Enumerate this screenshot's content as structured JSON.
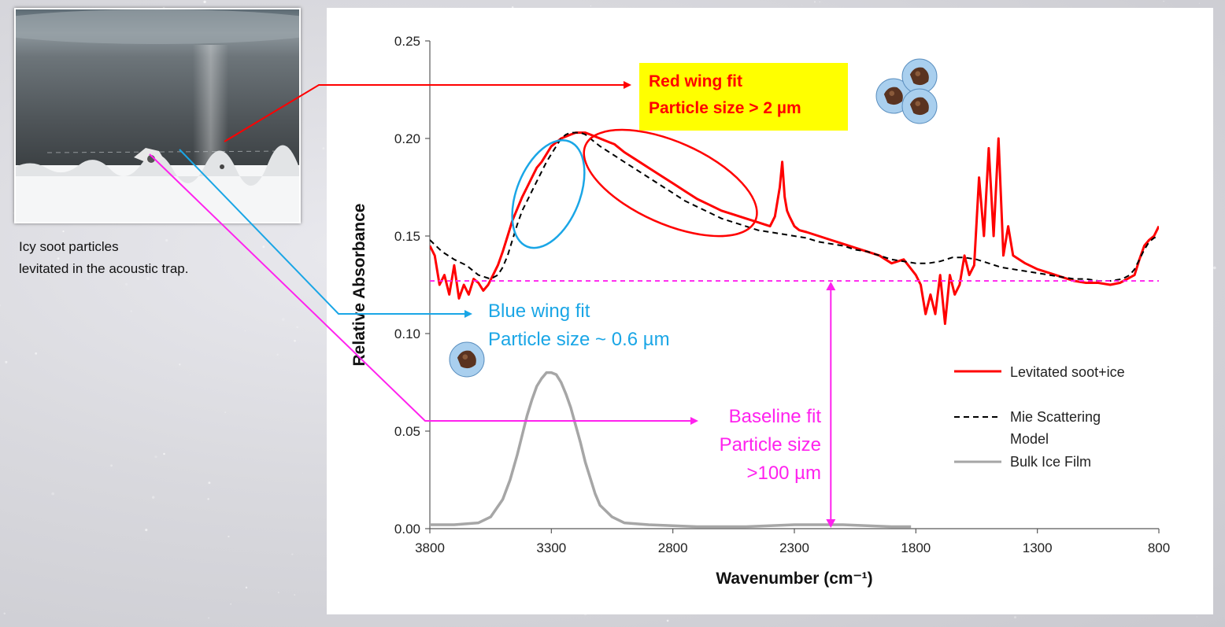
{
  "photo": {
    "caption_line1": "Icy soot particles",
    "caption_line2": "levitated in the acoustic trap."
  },
  "annotations": {
    "red_line1": "Red wing fit",
    "red_line2": "Particle size > 2 µm",
    "blue_line1": "Blue wing fit",
    "blue_line2": "Particle size ~ 0.6 µm",
    "magenta_line1": "Baseline fit",
    "magenta_line2": "Particle size",
    "magenta_line3": ">100 µm"
  },
  "colors": {
    "measured": "#ff0000",
    "model": "#000000",
    "ice": "#a6a6a6",
    "blue_annotation": "#1aa6e6",
    "baseline_annotation": "#ff22ee"
  },
  "chart_data": {
    "type": "line",
    "title": "",
    "xlabel": "Wavenumber (cm⁻¹)",
    "ylabel": "Relative Absorbance",
    "xlim": [
      3800,
      800
    ],
    "ylim": [
      0,
      0.25
    ],
    "x_reversed": true,
    "xticks": [
      3800,
      3300,
      2800,
      2300,
      1800,
      1300,
      800
    ],
    "xtick_labels": [
      "3800",
      "3300",
      "2800",
      "2300",
      "1800",
      "1300",
      "800"
    ],
    "yticks": [
      0,
      0.05,
      0.1,
      0.15,
      0.2,
      0.25
    ],
    "ytick_labels": [
      "0.00",
      "0.05",
      "0.10",
      "0.15",
      "0.20",
      "0.25"
    ],
    "legend_position": "right",
    "baseline_level": 0.127,
    "series": [
      {
        "name": "Levitated soot+ice",
        "style": "solid",
        "x": [
          3800,
          3780,
          3760,
          3740,
          3720,
          3700,
          3680,
          3660,
          3640,
          3620,
          3600,
          3580,
          3560,
          3540,
          3520,
          3500,
          3480,
          3460,
          3440,
          3420,
          3400,
          3380,
          3360,
          3340,
          3320,
          3300,
          3280,
          3260,
          3240,
          3220,
          3200,
          3180,
          3160,
          3140,
          3120,
          3100,
          3080,
          3060,
          3040,
          3020,
          3000,
          2950,
          2900,
          2850,
          2800,
          2750,
          2700,
          2650,
          2600,
          2550,
          2500,
          2450,
          2400,
          2380,
          2360,
          2350,
          2340,
          2330,
          2320,
          2300,
          2280,
          2250,
          2200,
          2150,
          2100,
          2050,
          2000,
          1950,
          1900,
          1850,
          1800,
          1780,
          1760,
          1740,
          1720,
          1700,
          1680,
          1660,
          1640,
          1620,
          1600,
          1580,
          1560,
          1540,
          1520,
          1500,
          1480,
          1460,
          1440,
          1420,
          1400,
          1350,
          1300,
          1250,
          1200,
          1150,
          1100,
          1050,
          1000,
          960,
          930,
          900,
          880,
          860,
          840,
          820,
          800
        ],
        "y": [
          0.145,
          0.14,
          0.125,
          0.13,
          0.12,
          0.135,
          0.118,
          0.125,
          0.12,
          0.128,
          0.126,
          0.122,
          0.125,
          0.13,
          0.135,
          0.142,
          0.15,
          0.158,
          0.164,
          0.17,
          0.175,
          0.18,
          0.185,
          0.188,
          0.192,
          0.196,
          0.198,
          0.2,
          0.201,
          0.202,
          0.203,
          0.203,
          0.203,
          0.202,
          0.201,
          0.2,
          0.199,
          0.198,
          0.197,
          0.195,
          0.193,
          0.189,
          0.185,
          0.181,
          0.177,
          0.173,
          0.169,
          0.166,
          0.163,
          0.161,
          0.159,
          0.157,
          0.155,
          0.16,
          0.175,
          0.188,
          0.17,
          0.163,
          0.16,
          0.155,
          0.153,
          0.152,
          0.15,
          0.148,
          0.146,
          0.144,
          0.142,
          0.14,
          0.136,
          0.138,
          0.13,
          0.125,
          0.11,
          0.12,
          0.11,
          0.13,
          0.105,
          0.13,
          0.12,
          0.125,
          0.14,
          0.13,
          0.135,
          0.18,
          0.15,
          0.195,
          0.15,
          0.2,
          0.14,
          0.155,
          0.14,
          0.136,
          0.133,
          0.131,
          0.129,
          0.127,
          0.126,
          0.126,
          0.125,
          0.126,
          0.128,
          0.13,
          0.138,
          0.145,
          0.148,
          0.15,
          0.155
        ]
      },
      {
        "name": "Mie Scattering Model",
        "style": "dashed",
        "x": [
          3800,
          3750,
          3700,
          3650,
          3600,
          3550,
          3520,
          3500,
          3480,
          3460,
          3440,
          3420,
          3400,
          3380,
          3360,
          3340,
          3320,
          3300,
          3280,
          3260,
          3240,
          3220,
          3200,
          3180,
          3160,
          3140,
          3120,
          3100,
          3050,
          3000,
          2950,
          2900,
          2850,
          2800,
          2750,
          2700,
          2650,
          2600,
          2550,
          2500,
          2450,
          2400,
          2350,
          2300,
          2250,
          2200,
          2150,
          2100,
          2050,
          2000,
          1950,
          1900,
          1850,
          1800,
          1750,
          1700,
          1650,
          1600,
          1550,
          1500,
          1450,
          1400,
          1350,
          1300,
          1250,
          1200,
          1150,
          1100,
          1050,
          1000,
          950,
          920,
          900,
          880,
          860,
          840,
          820,
          800
        ],
        "y": [
          0.148,
          0.142,
          0.138,
          0.135,
          0.13,
          0.128,
          0.13,
          0.134,
          0.14,
          0.148,
          0.156,
          0.163,
          0.168,
          0.173,
          0.178,
          0.183,
          0.188,
          0.192,
          0.196,
          0.2,
          0.202,
          0.203,
          0.203,
          0.203,
          0.202,
          0.2,
          0.198,
          0.196,
          0.192,
          0.188,
          0.184,
          0.18,
          0.176,
          0.172,
          0.168,
          0.165,
          0.162,
          0.159,
          0.157,
          0.155,
          0.153,
          0.152,
          0.151,
          0.15,
          0.149,
          0.147,
          0.146,
          0.145,
          0.143,
          0.142,
          0.14,
          0.138,
          0.137,
          0.136,
          0.136,
          0.137,
          0.139,
          0.139,
          0.138,
          0.136,
          0.134,
          0.133,
          0.132,
          0.131,
          0.13,
          0.129,
          0.128,
          0.128,
          0.127,
          0.127,
          0.128,
          0.13,
          0.133,
          0.138,
          0.143,
          0.147,
          0.149,
          0.15
        ]
      },
      {
        "name": "Bulk Ice Film",
        "style": "solid",
        "x": [
          3800,
          3700,
          3600,
          3550,
          3500,
          3470,
          3440,
          3420,
          3400,
          3380,
          3360,
          3340,
          3320,
          3300,
          3280,
          3260,
          3240,
          3220,
          3200,
          3180,
          3160,
          3140,
          3120,
          3100,
          3050,
          3000,
          2900,
          2700,
          2500,
          2300,
          2100,
          1900,
          1820
        ],
        "y": [
          0.002,
          0.002,
          0.003,
          0.006,
          0.015,
          0.025,
          0.038,
          0.048,
          0.058,
          0.066,
          0.073,
          0.077,
          0.08,
          0.08,
          0.079,
          0.075,
          0.069,
          0.062,
          0.053,
          0.044,
          0.034,
          0.026,
          0.018,
          0.012,
          0.006,
          0.003,
          0.002,
          0.001,
          0.001,
          0.002,
          0.002,
          0.001,
          0.001
        ]
      }
    ]
  }
}
